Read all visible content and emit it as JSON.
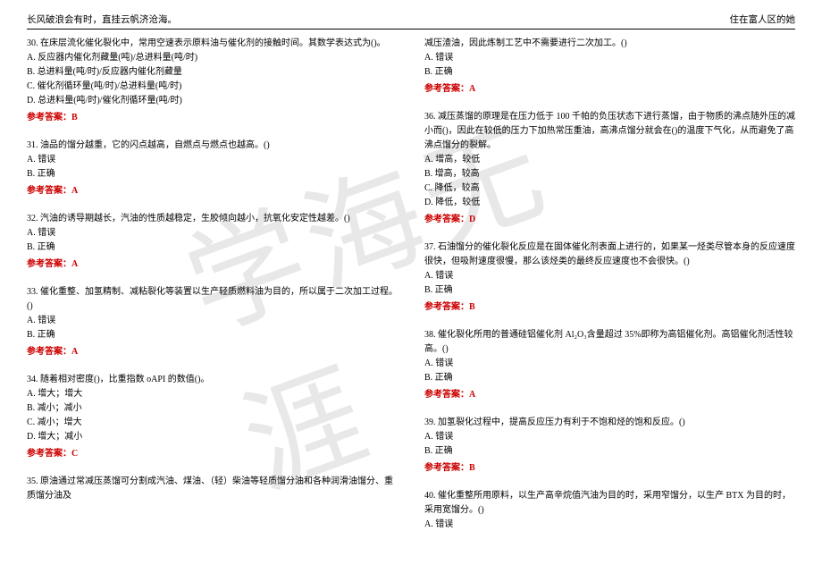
{
  "watermark": "学海无涯",
  "header": {
    "left": "长风破浪会有时，直挂云帆济沧海。",
    "right": "住在富人区的她"
  },
  "left_col": [
    {
      "num": "30.",
      "text": "在床层流化催化裂化中，常用空速表示原料油与催化剂的接触时间。其数学表达式为()。",
      "options": [
        "A. 反应器内催化剂藏量(吨)/总进料量(吨/时)",
        "B. 总进料量(吨/时)/反应器内催化剂藏量",
        "C. 催化剂循环量(吨/时)/总进料量(吨/时)",
        "D. 总进料量(吨/时)/催化剂循环量(吨/时)"
      ],
      "answer": "参考答案：B"
    },
    {
      "num": "31.",
      "text": "油品的馏分越重，它的闪点越高，自燃点与燃点也越高。()",
      "options": [
        "A. 错误",
        "B. 正确"
      ],
      "answer": "参考答案：A"
    },
    {
      "num": "32.",
      "text": "汽油的诱导期越长，汽油的性质越稳定，生胶倾向越小，抗氧化安定性越差。()",
      "options": [
        "A. 错误",
        "B. 正确"
      ],
      "answer": "参考答案：A"
    },
    {
      "num": "33.",
      "text": "催化重整、加氢精制、减粘裂化等装置以生产轻质燃料油为目的，所以属于二次加工过程。()",
      "options": [
        "A. 错误",
        "B. 正确"
      ],
      "answer": "参考答案：A"
    },
    {
      "num": "34.",
      "text": "随着相对密度()，比重指数 oAPI 的数值()。",
      "options": [
        "A. 增大；增大",
        "B. 减小；减小",
        "C. 减小；增大",
        "D. 增大；减小"
      ],
      "answer": "参考答案：C"
    },
    {
      "num": "35.",
      "text": "原油通过常减压蒸馏可分割成汽油、煤油、（轻）柴油等轻质馏分油和各种润滑油馏分、重质馏分油及",
      "options": [],
      "answer": ""
    }
  ],
  "right_col": [
    {
      "num": "",
      "text": "减压渣油，因此炼制工艺中不需要进行二次加工。()",
      "options": [
        "A. 错误",
        "B. 正确"
      ],
      "answer": "参考答案：A"
    },
    {
      "num": "36.",
      "text": "减压蒸馏的原理是在压力低于 100 千帕的负压状态下进行蒸馏，由于物质的沸点随外压的减小而()，因此在较低的压力下加热常压重油，高沸点馏分就会在()的温度下气化，从而避免了高沸点馏分的裂解。",
      "options": [
        "A. 增高，较低",
        "B. 增高，较高",
        "C. 降低，较高",
        "D. 降低，较低"
      ],
      "answer": "参考答案：D"
    },
    {
      "num": "37.",
      "text": "石油馏分的催化裂化反应是在固体催化剂表面上进行的，如果某一烃类尽管本身的反应速度很快，但吸附速度很慢，那么该烃类的最终反应速度也不会很快。()",
      "options": [
        "A. 错误",
        "B. 正确"
      ],
      "answer": "参考答案：B"
    },
    {
      "num": "38.",
      "text": "催化裂化所用的普通硅铝催化剂 Al₂O₃含量超过 35%即称为高铝催化剂。高铝催化剂活性较高。()",
      "options": [
        "A. 错误",
        "B. 正确"
      ],
      "answer": "参考答案：A"
    },
    {
      "num": "39.",
      "text": "加氢裂化过程中，提高反应压力有利于不饱和烃的饱和反应。()",
      "options": [
        "A. 错误",
        "B. 正确"
      ],
      "answer": "参考答案：B"
    },
    {
      "num": "40.",
      "text": "催化重整所用原料，以生产高辛烷值汽油为目的时，采用窄馏分，以生产 BTX 为目的时，采用宽馏分。()",
      "options": [
        "A. 错误"
      ],
      "answer": ""
    }
  ],
  "colors": {
    "answer_color": "#cc0000",
    "text_color": "#000000",
    "watermark_color": "#e8e8e8"
  }
}
